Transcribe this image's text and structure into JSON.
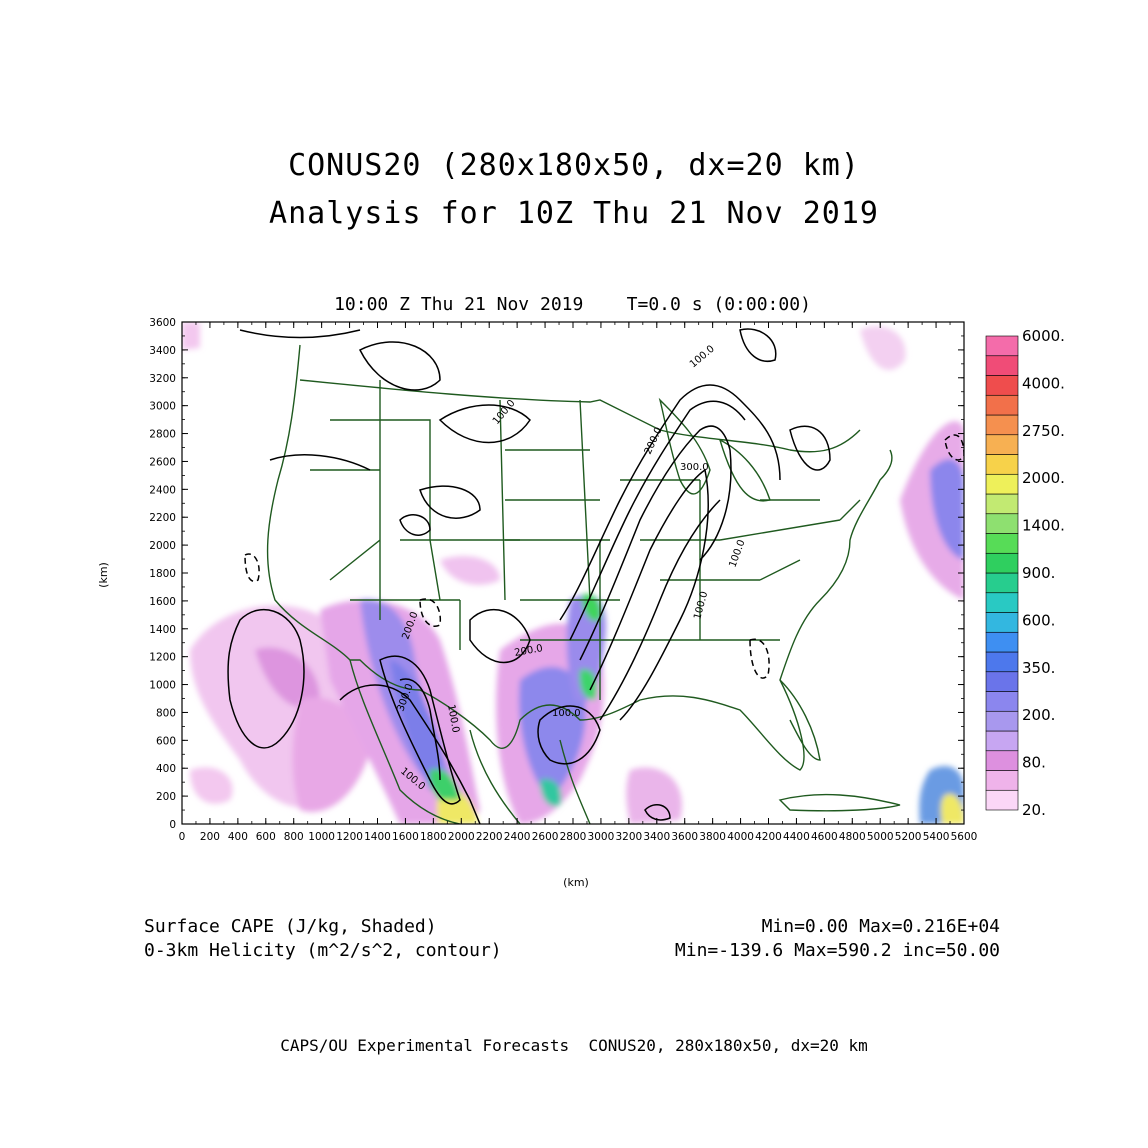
{
  "header": {
    "title_line1": "CONUS20 (280x180x50, dx=20 km)",
    "title_line2": "Analysis for 10Z Thu 21 Nov 2019",
    "valid_time": "10:00 Z Thu 21 Nov 2019    T=0.0 s (0:00:00)"
  },
  "axes": {
    "xlabel": "(km)",
    "ylabel": "(km)",
    "x_ticks": [
      "0",
      "200",
      "400",
      "600",
      "800",
      "1000",
      "1200",
      "1400",
      "1600",
      "1800",
      "2000",
      "2200",
      "2400",
      "2600",
      "2800",
      "3000",
      "3200",
      "3400",
      "3600",
      "3800",
      "4000",
      "4200",
      "4400",
      "4600",
      "4800",
      "5000",
      "5200",
      "5400",
      "5600"
    ],
    "y_ticks": [
      "0",
      "200",
      "400",
      "600",
      "800",
      "1000",
      "1200",
      "1400",
      "1600",
      "1800",
      "2000",
      "2200",
      "2400",
      "2600",
      "2800",
      "3000",
      "3200",
      "3400",
      "3600"
    ],
    "x_range": [
      0,
      5600
    ],
    "y_range": [
      0,
      3600
    ]
  },
  "colorbar": {
    "labels": [
      "20.",
      "80.",
      "200.",
      "350.",
      "600.",
      "900.",
      "1400.",
      "2000.",
      "2750.",
      "4000.",
      "6000."
    ],
    "colors": [
      "#fbd7f7",
      "#efb3ea",
      "#dd90df",
      "#c7a6f2",
      "#a898ee",
      "#8b86ee",
      "#6a74ea",
      "#4d78ec",
      "#3e8ff2",
      "#33b7e0",
      "#29c9c3",
      "#27cd8e",
      "#2fcf5f",
      "#57dc57",
      "#8ee070",
      "#c2ea72",
      "#eef05a",
      "#f7d24a",
      "#f7b052",
      "#f5904f",
      "#f2704a",
      "#ef4d4d",
      "#f04c77",
      "#f46caa"
    ]
  },
  "contour_labels": [
    "100.0",
    "100.0",
    "200.0",
    "300.0",
    "100.0",
    "100.0",
    "200.0",
    "100.0",
    "300.0",
    "100.0",
    "200.0",
    "100.0"
  ],
  "legend": {
    "left_line1": "Surface CAPE (J/kg, Shaded)",
    "left_line2": "0-3km Helicity (m^2/s^2, contour)",
    "right_line1": "Min=0.00 Max=0.216E+04",
    "right_line2": "Min=-139.6 Max=590.2 inc=50.00"
  },
  "footer": "CAPS/OU Experimental Forecasts  CONUS20, 280x180x50, dx=20 km",
  "colors": {
    "map_lines": "#1f5a1f",
    "contours": "#000000",
    "background": "#ffffff"
  }
}
